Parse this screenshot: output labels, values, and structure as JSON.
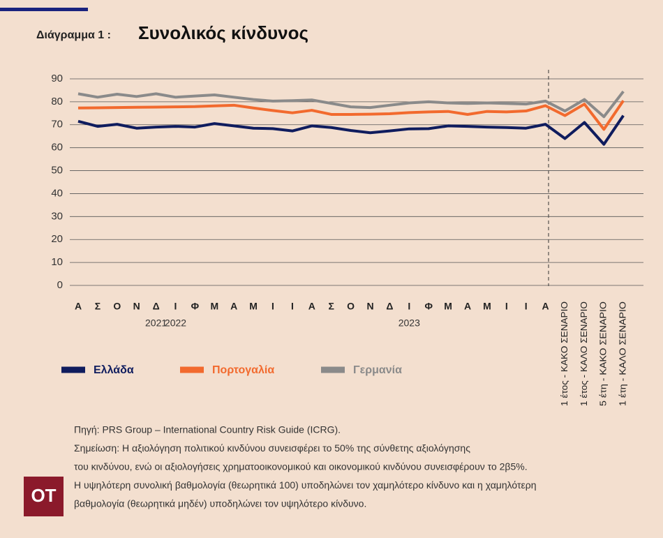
{
  "chart_data": {
    "type": "line",
    "label": "Διάγραμμα 1 :",
    "title": "Συνολικός κίνδυνος",
    "categories": [
      "Α",
      "Σ",
      "Ο",
      "Ν",
      "Δ",
      "Ι",
      "Φ",
      "Μ",
      "Α",
      "Μ",
      "Ι",
      "Ι",
      "Α",
      "Σ",
      "Ο",
      "Ν",
      "Δ",
      "Ι",
      "Φ",
      "Μ",
      "Α",
      "Μ",
      "Ι",
      "Ι",
      "Α",
      "1 έτος - ΚΑΚΟ ΣΕΝΑΡΙΟ",
      "1 έτος - ΚΑΛΟ ΣΕΝΑΡΙΟ",
      "5 έτη - ΚΑΚΟ ΣΕΝΑΡΙΟ",
      "1 έτη - ΚΑΛΟ ΣΕΝΑΡΙΟ"
    ],
    "year_labels": [
      null,
      null,
      null,
      null,
      "2021",
      "2022",
      null,
      null,
      null,
      null,
      null,
      null,
      null,
      null,
      null,
      null,
      null,
      "2023",
      null,
      null,
      null,
      null,
      null,
      null,
      null,
      null,
      null,
      null,
      null
    ],
    "series": [
      {
        "name": "Ελλάδα",
        "color": "#0f1c5e",
        "values": [
          71.5,
          69.3,
          70.2,
          68.5,
          69,
          69.3,
          69,
          70.5,
          69.5,
          68.5,
          68.3,
          67.3,
          69.5,
          68.8,
          67.5,
          66.5,
          67.3,
          68.2,
          68.3,
          69.5,
          69.3,
          69,
          68.8,
          68.5,
          70.2,
          64,
          71,
          61.5,
          74
        ]
      },
      {
        "name": "Πορτογαλία",
        "color": "#f26a2e",
        "values": [
          77.3,
          77.4,
          77.5,
          77.6,
          77.7,
          77.8,
          77.9,
          78.2,
          78.5,
          77.3,
          76.2,
          75.2,
          76.3,
          74.5,
          74.5,
          74.6,
          74.8,
          75.3,
          75.6,
          75.8,
          74.5,
          75.8,
          75.6,
          76,
          78.3,
          74,
          79,
          68,
          80.5
        ]
      },
      {
        "name": "Γερμανία",
        "color": "#8a8a8a",
        "values": [
          83.5,
          82,
          83.3,
          82.3,
          83.5,
          82,
          82.5,
          83,
          82,
          81,
          80.3,
          80.5,
          80.8,
          79.3,
          77.8,
          77.5,
          78.5,
          79.5,
          80,
          79.5,
          79.3,
          79.5,
          79.3,
          79,
          80.3,
          76,
          81,
          73.5,
          84.5
        ]
      }
    ],
    "ylim": [
      0,
      90
    ],
    "yticks": [
      0,
      10,
      20,
      30,
      40,
      50,
      60,
      70,
      80,
      90
    ],
    "grid": true,
    "notes": [
      "Πηγή: PRS Group – International Country Risk Guide (ICRG).",
      "Σημείωση: Η αξιολόγηση πολιτικού κινδύνου συνεισφέρει το 50% της σύνθετης αξιολόγησης",
      "του κινδύνου, ενώ οι αξιολογήσεις χρηματοοικονομικού και οικονομικού κινδύνου συνεισφέρουν το 2β5%.",
      "Η υψηλότερη συνολική βαθμολογία (θεωρητικά 100) υποδηλώνει τον χαμηλότερο κίνδυνο και η χαμηλότερη",
      "βαθμολογία (θεωρητικά μηδέν) υποδηλώνει τον υψηλότερο κίνδυνο."
    ],
    "logo": "ΟΤ"
  }
}
